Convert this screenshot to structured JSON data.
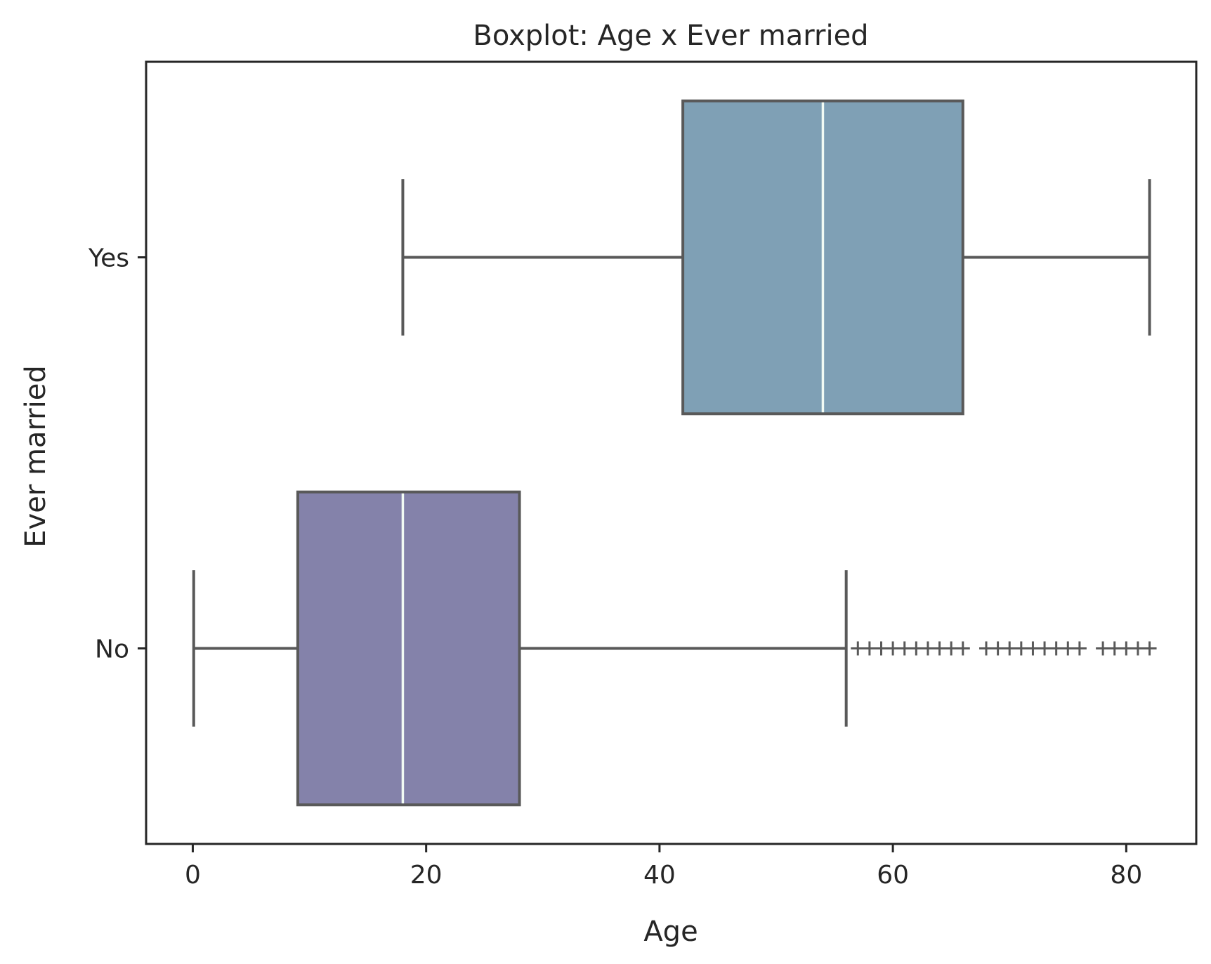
{
  "chart_data": {
    "type": "boxplot",
    "orientation": "horizontal",
    "title": "Boxplot: Age x Ever married",
    "xlabel": "Age",
    "ylabel": "Ever married",
    "xlim": [
      -4,
      86
    ],
    "xticks": [
      0,
      20,
      40,
      60,
      80
    ],
    "grid": false,
    "legend": "none",
    "categories": [
      "Yes",
      "No"
    ],
    "series": [
      {
        "category": "Yes",
        "color": "#7fa0b5",
        "whisker_low": 18,
        "q1": 42,
        "median": 54,
        "q3": 66,
        "whisker_high": 82,
        "outliers": []
      },
      {
        "category": "No",
        "color": "#8482aa",
        "whisker_low": 0.08,
        "q1": 9,
        "median": 18,
        "q3": 28,
        "whisker_high": 56,
        "outliers": [
          57,
          58,
          59,
          60,
          61,
          62,
          63,
          64,
          65,
          66,
          68,
          69,
          70,
          71,
          72,
          73,
          74,
          75,
          76,
          78,
          79,
          80,
          81,
          82
        ]
      }
    ]
  }
}
